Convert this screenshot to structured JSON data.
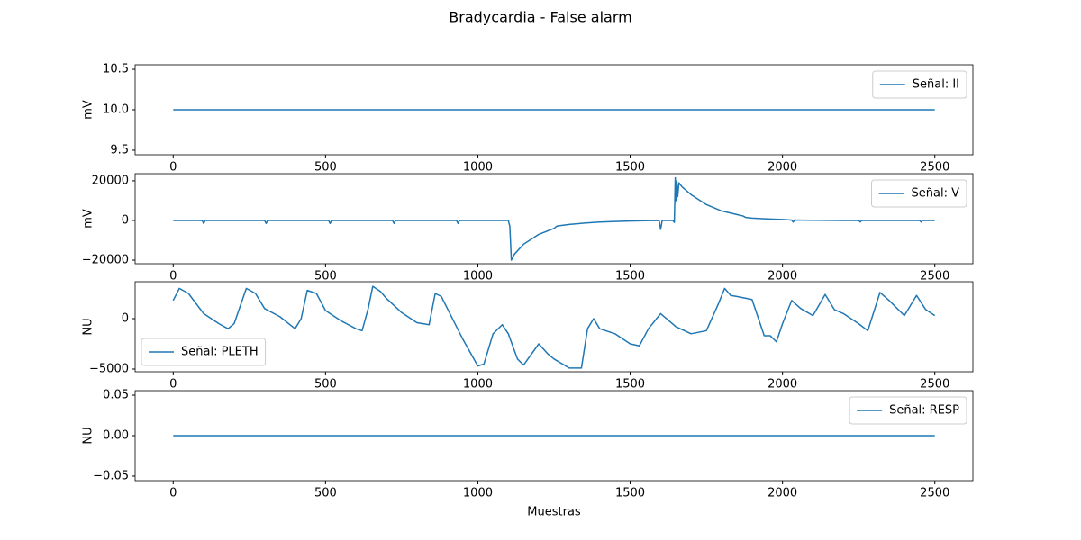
{
  "title": "Bradycardia - False alarm",
  "chart_data": [
    {
      "type": "line",
      "ylabel": "mV",
      "x": [
        0,
        2500
      ],
      "series": [
        {
          "name": "Señal: II",
          "color": "#1f77b4",
          "values": [
            10,
            10
          ]
        }
      ],
      "xlim": [
        -125,
        2625
      ],
      "ylim": [
        9.444,
        10.556
      ],
      "xticks": [
        0,
        500,
        1000,
        1500,
        2000,
        2500
      ],
      "yticks": [
        9.5,
        {
          "value": 10,
          "label": "10.0"
        },
        10.5
      ],
      "legend": "upper right"
    },
    {
      "type": "line",
      "ylabel": "mV",
      "x": [
        0,
        95,
        100,
        105,
        300,
        305,
        310,
        510,
        515,
        520,
        720,
        725,
        730,
        930,
        935,
        940,
        1100,
        1105,
        1110,
        1120,
        1150,
        1200,
        1250,
        1260,
        1300,
        1350,
        1400,
        1450,
        1500,
        1550,
        1595,
        1600,
        1605,
        1640,
        1645,
        1648,
        1650,
        1653,
        1656,
        1660,
        1670,
        1700,
        1750,
        1800,
        1850,
        1870,
        1880,
        1900,
        1950,
        2000,
        2030,
        2035,
        2040,
        2100,
        2200,
        2250,
        2255,
        2260,
        2400,
        2450,
        2455,
        2460,
        2500
      ],
      "series": [
        {
          "name": "Señal: V",
          "color": "#1f77b4",
          "values": [
            0,
            0,
            -1500,
            0,
            0,
            -1500,
            0,
            0,
            -1500,
            0,
            0,
            -1500,
            0,
            0,
            -1500,
            0,
            0,
            -3000,
            -20000,
            -17000,
            -12000,
            -7000,
            -4000,
            -2800,
            -2000,
            -1300,
            -800,
            -500,
            -300,
            -100,
            0,
            -4500,
            0,
            0,
            -1000,
            21500,
            10000,
            20000,
            12000,
            19000,
            17000,
            13000,
            8000,
            4800,
            3000,
            2300,
            1500,
            1200,
            800,
            500,
            200,
            -800,
            200,
            100,
            0,
            0,
            -800,
            0,
            0,
            0,
            -800,
            0,
            0
          ]
        }
      ],
      "xlim": [
        -125,
        2625
      ],
      "ylim": [
        -21800,
        23600
      ],
      "xticks": [
        0,
        500,
        1000,
        1500,
        2000,
        2500
      ],
      "yticks": [
        {
          "value": -20000,
          "label": "−20000"
        },
        0,
        20000
      ],
      "legend": "upper right"
    },
    {
      "type": "line",
      "ylabel": "NU",
      "x": [
        0,
        20,
        50,
        100,
        150,
        180,
        200,
        240,
        270,
        300,
        350,
        400,
        420,
        440,
        470,
        500,
        550,
        600,
        620,
        640,
        655,
        680,
        700,
        750,
        800,
        840,
        860,
        880,
        900,
        950,
        1000,
        1020,
        1050,
        1080,
        1100,
        1130,
        1150,
        1200,
        1230,
        1250,
        1300,
        1340,
        1360,
        1380,
        1400,
        1450,
        1500,
        1530,
        1560,
        1600,
        1650,
        1700,
        1750,
        1790,
        1810,
        1830,
        1850,
        1900,
        1940,
        1960,
        1980,
        2000,
        2030,
        2060,
        2100,
        2140,
        2170,
        2200,
        2250,
        2280,
        2320,
        2350,
        2400,
        2440,
        2470,
        2500
      ],
      "series": [
        {
          "name": "Señal: PLETH",
          "color": "#1f77b4",
          "values": [
            1800,
            3000,
            2500,
            500,
            -500,
            -1000,
            -500,
            3000,
            2500,
            1000,
            200,
            -1000,
            0,
            2800,
            2500,
            800,
            -200,
            -1000,
            -1200,
            1000,
            3200,
            2700,
            2000,
            600,
            -400,
            -600,
            2500,
            2200,
            1000,
            -2000,
            -4700,
            -4500,
            -1500,
            -600,
            -1500,
            -4000,
            -4600,
            -2500,
            -3500,
            -4000,
            -4900,
            -4900,
            -1000,
            0,
            -1000,
            -1500,
            -2500,
            -2700,
            -1000,
            500,
            -800,
            -1500,
            -1200,
            1500,
            3000,
            2300,
            2200,
            1900,
            -1700,
            -1700,
            -2300,
            -500,
            1800,
            1000,
            300,
            2400,
            900,
            500,
            -500,
            -1200,
            2600,
            1800,
            300,
            2300,
            900,
            300
          ]
        }
      ],
      "xlim": [
        -125,
        2625
      ],
      "ylim": [
        -5268,
        3661
      ],
      "xticks": [
        0,
        500,
        1000,
        1500,
        2000,
        2500
      ],
      "yticks": [
        {
          "value": -5000,
          "label": "−5000"
        },
        0
      ],
      "legend": "lower left"
    },
    {
      "type": "line",
      "ylabel": "NU",
      "xlabel": "Muestras",
      "x": [
        0,
        2500
      ],
      "series": [
        {
          "name": "Señal: RESP",
          "color": "#1f77b4",
          "values": [
            0,
            0
          ]
        }
      ],
      "xlim": [
        -125,
        2625
      ],
      "ylim": [
        -0.0556,
        0.0556
      ],
      "xticks": [
        0,
        500,
        1000,
        1500,
        2000,
        2500
      ],
      "yticks": [
        {
          "value": -0.05,
          "label": "−0.05"
        },
        {
          "value": 0,
          "label": "0.00"
        },
        {
          "value": 0.05,
          "label": "0.05"
        }
      ],
      "legend": "upper right"
    }
  ]
}
